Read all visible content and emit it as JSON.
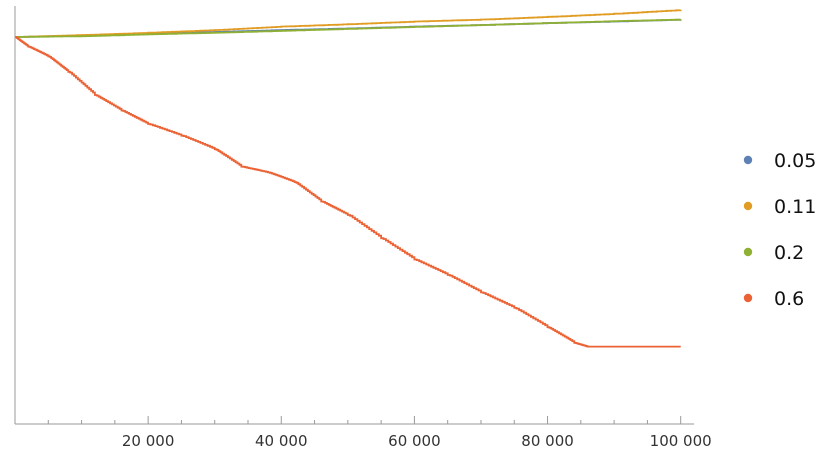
{
  "chart_data": {
    "type": "line",
    "title": "",
    "xlabel": "",
    "ylabel": "",
    "xlim": [
      0,
      102000
    ],
    "x_ticks": [
      20000,
      40000,
      60000,
      80000,
      100000
    ],
    "x_tick_labels": [
      "20 000",
      "40 000",
      "60 000",
      "80 000",
      "100 000"
    ],
    "y_range": [
      -1.0,
      0.08
    ],
    "grid": false,
    "legend_position": "right",
    "series": [
      {
        "name": "0.05",
        "color": "#5e81b5",
        "points": [
          [
            0,
            0
          ],
          [
            10000,
            0.004
          ],
          [
            20000,
            0.009
          ],
          [
            30000,
            0.013
          ],
          [
            40000,
            0.018
          ],
          [
            50000,
            0.022
          ],
          [
            60000,
            0.027
          ],
          [
            70000,
            0.031
          ],
          [
            80000,
            0.036
          ],
          [
            90000,
            0.04
          ],
          [
            100000,
            0.045
          ]
        ]
      },
      {
        "name": "0.11",
        "color": "#e19c24",
        "points": [
          [
            0,
            0
          ],
          [
            10000,
            0.005
          ],
          [
            20000,
            0.011
          ],
          [
            30000,
            0.018
          ],
          [
            40000,
            0.027
          ],
          [
            50000,
            0.033
          ],
          [
            60000,
            0.04
          ],
          [
            70000,
            0.045
          ],
          [
            80000,
            0.052
          ],
          [
            90000,
            0.06
          ],
          [
            100000,
            0.07
          ]
        ]
      },
      {
        "name": "0.2",
        "color": "#8fb032",
        "points": [
          [
            0,
            0
          ],
          [
            10000,
            0.002
          ],
          [
            20000,
            0.007
          ],
          [
            30000,
            0.011
          ],
          [
            40000,
            0.016
          ],
          [
            50000,
            0.021
          ],
          [
            60000,
            0.026
          ],
          [
            70000,
            0.031
          ],
          [
            80000,
            0.036
          ],
          [
            90000,
            0.041
          ],
          [
            100000,
            0.045
          ]
        ]
      },
      {
        "name": "0.6",
        "color": "#eb6235",
        "points": [
          [
            0,
            0
          ],
          [
            2000,
            -0.025
          ],
          [
            5000,
            -0.05
          ],
          [
            8000,
            -0.09
          ],
          [
            12000,
            -0.15
          ],
          [
            16000,
            -0.19
          ],
          [
            20000,
            -0.225
          ],
          [
            25000,
            -0.255
          ],
          [
            30000,
            -0.29
          ],
          [
            34000,
            -0.335
          ],
          [
            38000,
            -0.35
          ],
          [
            42000,
            -0.375
          ],
          [
            46000,
            -0.425
          ],
          [
            50000,
            -0.46
          ],
          [
            55000,
            -0.52
          ],
          [
            60000,
            -0.575
          ],
          [
            65000,
            -0.615
          ],
          [
            70000,
            -0.66
          ],
          [
            75000,
            -0.7
          ],
          [
            80000,
            -0.75
          ],
          [
            84000,
            -0.79
          ],
          [
            86000,
            -0.8
          ],
          [
            100000,
            -0.8
          ]
        ]
      }
    ]
  }
}
